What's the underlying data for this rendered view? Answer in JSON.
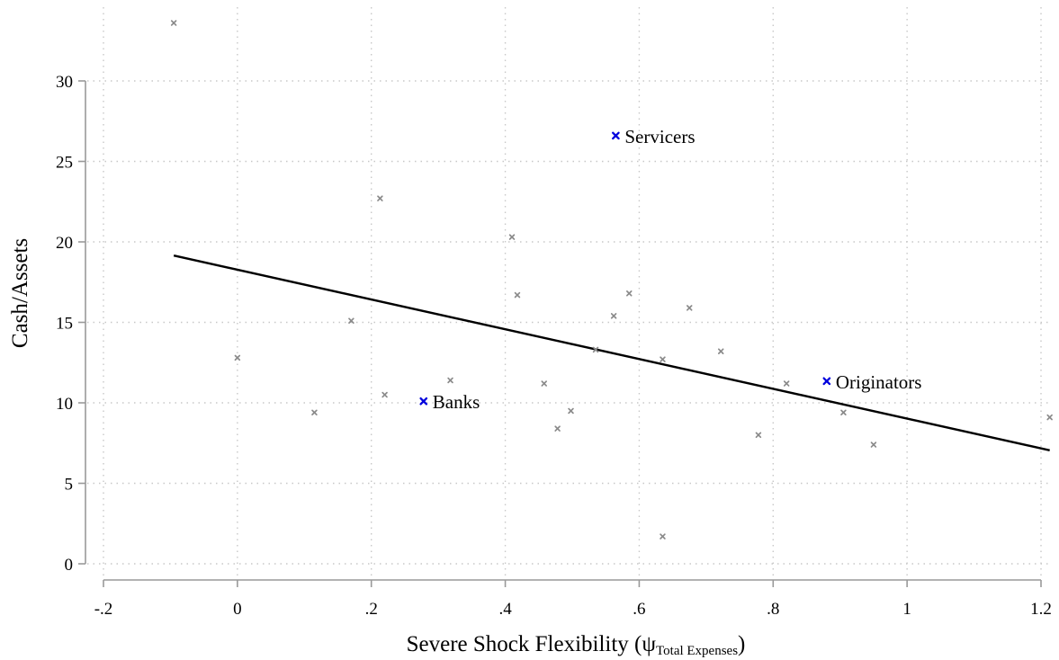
{
  "chart_data": {
    "type": "scatter",
    "xlabel": "Severe Shock Flexibility (ψ",
    "xlabel_subscript": "Total Expenses",
    "xlabel_close": ")",
    "ylabel": "Cash/Assets",
    "xlim": [
      -0.2,
      1.22
    ],
    "ylim": [
      -0.5,
      33.5
    ],
    "x_ticks": [
      {
        "value": -0.2,
        "label": "-.2"
      },
      {
        "value": 0,
        "label": "0"
      },
      {
        "value": 0.2,
        "label": ".2"
      },
      {
        "value": 0.4,
        "label": ".4"
      },
      {
        "value": 0.6,
        "label": ".6"
      },
      {
        "value": 0.8,
        "label": ".8"
      },
      {
        "value": 1,
        "label": "1"
      },
      {
        "value": 1.2,
        "label": "1.2"
      }
    ],
    "y_ticks": [
      {
        "value": 0,
        "label": "0"
      },
      {
        "value": 5,
        "label": "5"
      },
      {
        "value": 10,
        "label": "10"
      },
      {
        "value": 15,
        "label": "15"
      },
      {
        "value": 20,
        "label": "20"
      },
      {
        "value": 25,
        "label": "25"
      },
      {
        "value": 30,
        "label": "30"
      }
    ],
    "grid": true,
    "points": [
      {
        "x": -0.095,
        "y": 33.6
      },
      {
        "x": 0.0,
        "y": 12.8
      },
      {
        "x": 0.115,
        "y": 9.4
      },
      {
        "x": 0.17,
        "y": 15.1
      },
      {
        "x": 0.213,
        "y": 22.7
      },
      {
        "x": 0.22,
        "y": 10.5
      },
      {
        "x": 0.318,
        "y": 11.4
      },
      {
        "x": 0.41,
        "y": 20.3
      },
      {
        "x": 0.418,
        "y": 16.7
      },
      {
        "x": 0.458,
        "y": 11.2
      },
      {
        "x": 0.478,
        "y": 8.4
      },
      {
        "x": 0.498,
        "y": 9.5
      },
      {
        "x": 0.535,
        "y": 13.3
      },
      {
        "x": 0.562,
        "y": 15.4
      },
      {
        "x": 0.585,
        "y": 16.8
      },
      {
        "x": 0.635,
        "y": 12.7
      },
      {
        "x": 0.635,
        "y": 1.7
      },
      {
        "x": 0.675,
        "y": 15.9
      },
      {
        "x": 0.722,
        "y": 13.2
      },
      {
        "x": 0.778,
        "y": 8.0
      },
      {
        "x": 0.82,
        "y": 11.2
      },
      {
        "x": 0.905,
        "y": 9.4
      },
      {
        "x": 0.95,
        "y": 7.4
      },
      {
        "x": 1.213,
        "y": 9.1
      }
    ],
    "highlighted": [
      {
        "x": 0.278,
        "y": 10.1,
        "label": "Banks"
      },
      {
        "x": 0.565,
        "y": 26.6,
        "label": "Servicers"
      },
      {
        "x": 0.88,
        "y": 11.35,
        "label": "Originators"
      }
    ],
    "fit_line": {
      "x": [
        -0.095,
        1.213
      ],
      "y": [
        19.15,
        7.05
      ]
    },
    "colors": {
      "point": "#8a8a8a",
      "highlight": "#0000dd",
      "line": "#000000",
      "axis": "#999999",
      "grid": "#c8c8c8"
    }
  }
}
